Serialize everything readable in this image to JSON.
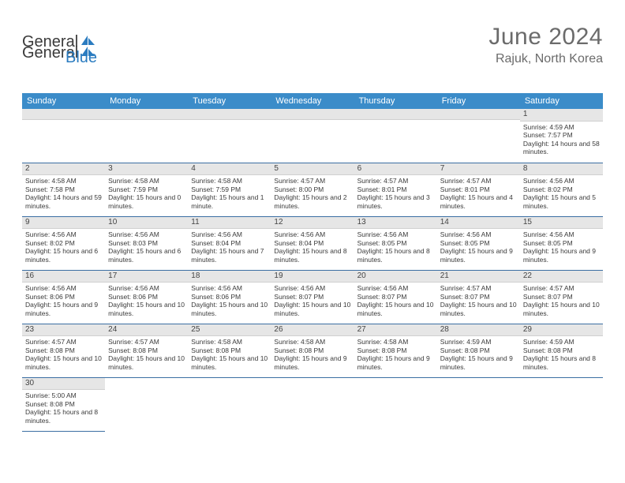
{
  "brand": {
    "part1": "General",
    "part2": "Blue"
  },
  "title": "June 2024",
  "location": "Rajuk, North Korea",
  "colors": {
    "header_bg": "#3b8cc9",
    "header_text": "#ffffff",
    "daynum_bg": "#e6e6e6",
    "row_border": "#3b6fa3",
    "title_color": "#6b6b6b",
    "text_color": "#333333",
    "brand_blue": "#2b7cc0"
  },
  "daysOfWeek": [
    "Sunday",
    "Monday",
    "Tuesday",
    "Wednesday",
    "Thursday",
    "Friday",
    "Saturday"
  ],
  "weeks": [
    [
      null,
      null,
      null,
      null,
      null,
      null,
      {
        "n": "1",
        "sr": "Sunrise: 4:59 AM",
        "ss": "Sunset: 7:57 PM",
        "dl": "Daylight: 14 hours and 58 minutes."
      }
    ],
    [
      {
        "n": "2",
        "sr": "Sunrise: 4:58 AM",
        "ss": "Sunset: 7:58 PM",
        "dl": "Daylight: 14 hours and 59 minutes."
      },
      {
        "n": "3",
        "sr": "Sunrise: 4:58 AM",
        "ss": "Sunset: 7:59 PM",
        "dl": "Daylight: 15 hours and 0 minutes."
      },
      {
        "n": "4",
        "sr": "Sunrise: 4:58 AM",
        "ss": "Sunset: 7:59 PM",
        "dl": "Daylight: 15 hours and 1 minute."
      },
      {
        "n": "5",
        "sr": "Sunrise: 4:57 AM",
        "ss": "Sunset: 8:00 PM",
        "dl": "Daylight: 15 hours and 2 minutes."
      },
      {
        "n": "6",
        "sr": "Sunrise: 4:57 AM",
        "ss": "Sunset: 8:01 PM",
        "dl": "Daylight: 15 hours and 3 minutes."
      },
      {
        "n": "7",
        "sr": "Sunrise: 4:57 AM",
        "ss": "Sunset: 8:01 PM",
        "dl": "Daylight: 15 hours and 4 minutes."
      },
      {
        "n": "8",
        "sr": "Sunrise: 4:56 AM",
        "ss": "Sunset: 8:02 PM",
        "dl": "Daylight: 15 hours and 5 minutes."
      }
    ],
    [
      {
        "n": "9",
        "sr": "Sunrise: 4:56 AM",
        "ss": "Sunset: 8:02 PM",
        "dl": "Daylight: 15 hours and 6 minutes."
      },
      {
        "n": "10",
        "sr": "Sunrise: 4:56 AM",
        "ss": "Sunset: 8:03 PM",
        "dl": "Daylight: 15 hours and 6 minutes."
      },
      {
        "n": "11",
        "sr": "Sunrise: 4:56 AM",
        "ss": "Sunset: 8:04 PM",
        "dl": "Daylight: 15 hours and 7 minutes."
      },
      {
        "n": "12",
        "sr": "Sunrise: 4:56 AM",
        "ss": "Sunset: 8:04 PM",
        "dl": "Daylight: 15 hours and 8 minutes."
      },
      {
        "n": "13",
        "sr": "Sunrise: 4:56 AM",
        "ss": "Sunset: 8:05 PM",
        "dl": "Daylight: 15 hours and 8 minutes."
      },
      {
        "n": "14",
        "sr": "Sunrise: 4:56 AM",
        "ss": "Sunset: 8:05 PM",
        "dl": "Daylight: 15 hours and 9 minutes."
      },
      {
        "n": "15",
        "sr": "Sunrise: 4:56 AM",
        "ss": "Sunset: 8:05 PM",
        "dl": "Daylight: 15 hours and 9 minutes."
      }
    ],
    [
      {
        "n": "16",
        "sr": "Sunrise: 4:56 AM",
        "ss": "Sunset: 8:06 PM",
        "dl": "Daylight: 15 hours and 9 minutes."
      },
      {
        "n": "17",
        "sr": "Sunrise: 4:56 AM",
        "ss": "Sunset: 8:06 PM",
        "dl": "Daylight: 15 hours and 10 minutes."
      },
      {
        "n": "18",
        "sr": "Sunrise: 4:56 AM",
        "ss": "Sunset: 8:06 PM",
        "dl": "Daylight: 15 hours and 10 minutes."
      },
      {
        "n": "19",
        "sr": "Sunrise: 4:56 AM",
        "ss": "Sunset: 8:07 PM",
        "dl": "Daylight: 15 hours and 10 minutes."
      },
      {
        "n": "20",
        "sr": "Sunrise: 4:56 AM",
        "ss": "Sunset: 8:07 PM",
        "dl": "Daylight: 15 hours and 10 minutes."
      },
      {
        "n": "21",
        "sr": "Sunrise: 4:57 AM",
        "ss": "Sunset: 8:07 PM",
        "dl": "Daylight: 15 hours and 10 minutes."
      },
      {
        "n": "22",
        "sr": "Sunrise: 4:57 AM",
        "ss": "Sunset: 8:07 PM",
        "dl": "Daylight: 15 hours and 10 minutes."
      }
    ],
    [
      {
        "n": "23",
        "sr": "Sunrise: 4:57 AM",
        "ss": "Sunset: 8:08 PM",
        "dl": "Daylight: 15 hours and 10 minutes."
      },
      {
        "n": "24",
        "sr": "Sunrise: 4:57 AM",
        "ss": "Sunset: 8:08 PM",
        "dl": "Daylight: 15 hours and 10 minutes."
      },
      {
        "n": "25",
        "sr": "Sunrise: 4:58 AM",
        "ss": "Sunset: 8:08 PM",
        "dl": "Daylight: 15 hours and 10 minutes."
      },
      {
        "n": "26",
        "sr": "Sunrise: 4:58 AM",
        "ss": "Sunset: 8:08 PM",
        "dl": "Daylight: 15 hours and 9 minutes."
      },
      {
        "n": "27",
        "sr": "Sunrise: 4:58 AM",
        "ss": "Sunset: 8:08 PM",
        "dl": "Daylight: 15 hours and 9 minutes."
      },
      {
        "n": "28",
        "sr": "Sunrise: 4:59 AM",
        "ss": "Sunset: 8:08 PM",
        "dl": "Daylight: 15 hours and 9 minutes."
      },
      {
        "n": "29",
        "sr": "Sunrise: 4:59 AM",
        "ss": "Sunset: 8:08 PM",
        "dl": "Daylight: 15 hours and 8 minutes."
      }
    ],
    [
      {
        "n": "30",
        "sr": "Sunrise: 5:00 AM",
        "ss": "Sunset: 8:08 PM",
        "dl": "Daylight: 15 hours and 8 minutes."
      },
      null,
      null,
      null,
      null,
      null,
      null
    ]
  ]
}
